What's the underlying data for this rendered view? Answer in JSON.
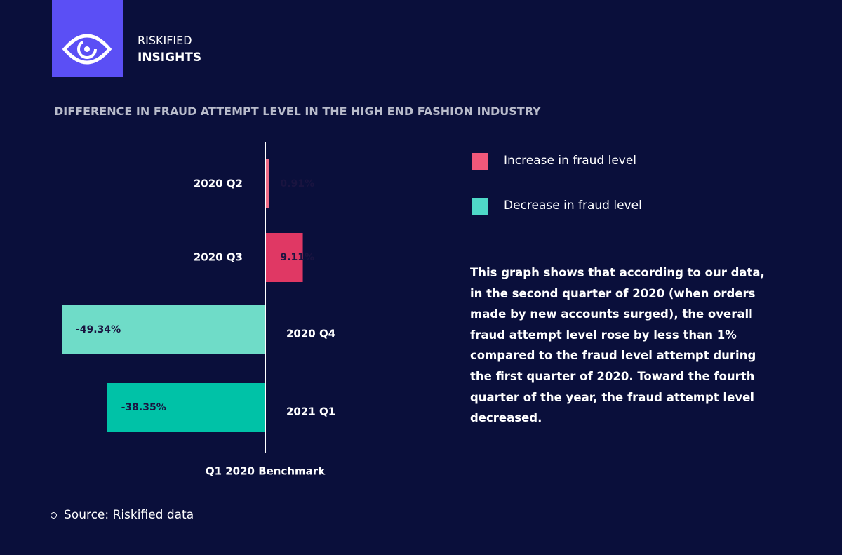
{
  "header": {
    "brand": "RISKIFIED",
    "title": "INSIGHTS"
  },
  "chart_data": {
    "type": "bar",
    "orientation": "horizontal",
    "title": "DIFFERENCE IN FRAUD ATTEMPT LEVEL IN THE HIGH END FASHION INDUSTRY",
    "categories": [
      "2020 Q2",
      "2020 Q3",
      "2020 Q4",
      "2021 Q1"
    ],
    "values": [
      0.91,
      9.11,
      -49.34,
      -38.35
    ],
    "value_labels": [
      "0.91%",
      "9.11%",
      "-49.34%",
      "-38.35%"
    ],
    "colors": [
      "#f06b86",
      "#e03864",
      "#6fdcc8",
      "#00c2a7"
    ],
    "x_label": "Q1 2020 Benchmark",
    "legend": [
      {
        "name": "Increase in fraud level",
        "color": "#f0587a"
      },
      {
        "name": "Decrease in fraud level",
        "color": "#4fd8c8"
      }
    ]
  },
  "description": "This graph shows that according to our data, in the second quarter of 2020 (when orders made by new accounts surged), the overall fraud attempt level rose by less than 1% compared to the fraud level attempt during the first quarter of 2020. Toward the fourth quarter of the year, the fraud attempt level decreased.",
  "source": "Source: Riskified data"
}
